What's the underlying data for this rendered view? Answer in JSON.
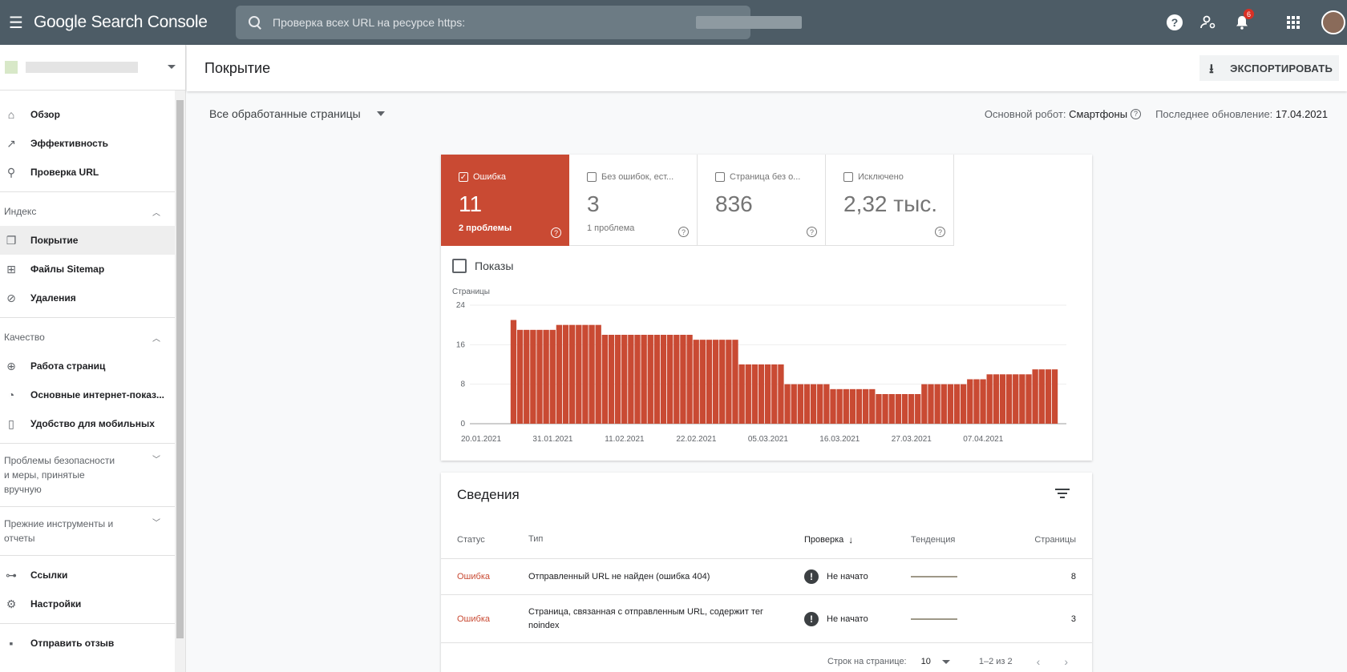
{
  "app": {
    "title": "Google Search Console",
    "search_placeholder": "Проверка всех URL на ресурсе https:",
    "notifications_count": "6"
  },
  "sidebar": {
    "items_top": [
      {
        "label": "Обзор",
        "icon": "home-icon"
      },
      {
        "label": "Эффективность",
        "icon": "trending-icon"
      },
      {
        "label": "Проверка URL",
        "icon": "search-icon"
      }
    ],
    "section_index": "Индекс",
    "items_index": [
      {
        "label": "Покрытие",
        "icon": "copy-icon",
        "active": true
      },
      {
        "label": "Файлы Sitemap",
        "icon": "sitemap-icon"
      },
      {
        "label": "Удаления",
        "icon": "eye-off-icon"
      }
    ],
    "section_quality": "Качество",
    "items_quality": [
      {
        "label": "Работа страниц",
        "icon": "plus-circle-icon"
      },
      {
        "label": "Основные интернет-показ...",
        "icon": "gauge-icon"
      },
      {
        "label": "Удобство для мобильных",
        "icon": "phone-icon"
      }
    ],
    "section_security": "Проблемы безопасности и меры, принятые вручную",
    "section_legacy": "Прежние инструменты и отчеты",
    "items_bottom": [
      {
        "label": "Ссылки",
        "icon": "links-icon"
      },
      {
        "label": "Настройки",
        "icon": "gear-icon"
      }
    ],
    "feedback": {
      "label": "Отправить отзыв",
      "icon": "feedback-icon"
    }
  },
  "header": {
    "title": "Покрытие",
    "export_label": "ЭКСПОРТИРОВАТЬ"
  },
  "filter": {
    "selected": "Все обработанные страницы",
    "robot_label": "Основной робот:",
    "robot_value": "Смартфоны",
    "updated_label": "Последнее обновление:",
    "updated_value": "17.04.2021"
  },
  "tiles": [
    {
      "label": "Ошибка",
      "value": "11",
      "sub": "2 проблемы",
      "checked": true,
      "color": "#c94a33"
    },
    {
      "label": "Без ошибок, ест...",
      "value": "3",
      "sub": "1 проблема",
      "checked": false
    },
    {
      "label": "Страница без о...",
      "value": "836",
      "sub": "",
      "checked": false
    },
    {
      "label": "Исключено",
      "value": "2,32 тыс.",
      "sub": "",
      "checked": false
    }
  ],
  "impressions_label": "Показы",
  "chart_data": {
    "type": "bar",
    "ylabel": "Страницы",
    "ylim": [
      0,
      24
    ],
    "yticks": [
      0,
      8,
      16,
      24
    ],
    "xtick_labels": [
      "20.01.2021",
      "31.01.2021",
      "11.02.2021",
      "22.02.2021",
      "05.03.2021",
      "16.03.2021",
      "27.03.2021",
      "07.04.2021"
    ],
    "color": "#c94a33",
    "grid": true,
    "values": [
      0,
      0,
      0,
      0,
      0,
      0,
      21,
      19,
      19,
      19,
      19,
      19,
      19,
      20,
      20,
      20,
      20,
      20,
      20,
      20,
      18,
      18,
      18,
      18,
      18,
      18,
      18,
      18,
      18,
      18,
      18,
      18,
      18,
      18,
      17,
      17,
      17,
      17,
      17,
      17,
      17,
      12,
      12,
      12,
      12,
      12,
      12,
      12,
      8,
      8,
      8,
      8,
      8,
      8,
      8,
      7,
      7,
      7,
      7,
      7,
      7,
      7,
      6,
      6,
      6,
      6,
      6,
      6,
      6,
      8,
      8,
      8,
      8,
      8,
      8,
      8,
      9,
      9,
      9,
      10,
      10,
      10,
      10,
      10,
      10,
      10,
      11,
      11,
      11,
      11
    ]
  },
  "details": {
    "title": "Сведения",
    "columns": {
      "status": "Статус",
      "type": "Тип",
      "check": "Проверка",
      "trend": "Тенденция",
      "pages": "Страницы"
    },
    "rows": [
      {
        "status": "Ошибка",
        "type": "Отправленный URL не найден (ошибка 404)",
        "check": "Не начато",
        "pages": "8"
      },
      {
        "status": "Ошибка",
        "type": "Страница, связанная с отправленным URL, содержит тег noindex",
        "check": "Не начато",
        "pages": "3"
      }
    ],
    "pager": {
      "rows_per_page_label": "Строк на странице:",
      "rows_per_page": "10",
      "range": "1–2 из 2"
    }
  }
}
